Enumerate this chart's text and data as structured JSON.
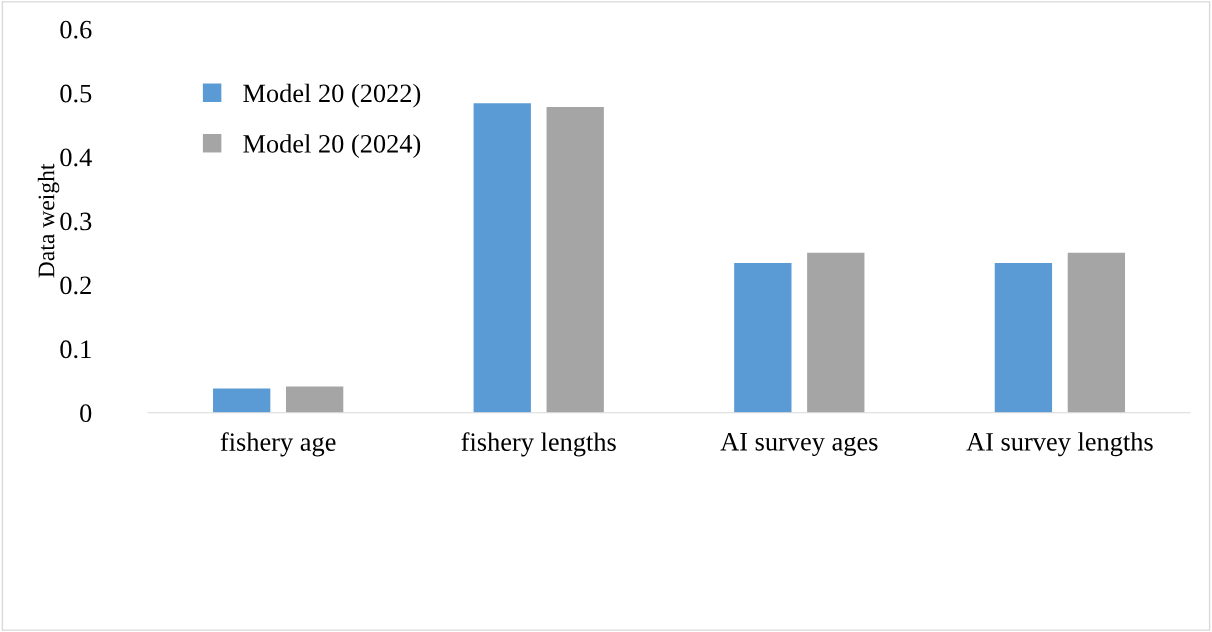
{
  "chart_data": {
    "type": "bar",
    "ylabel": "Data weight",
    "categories": [
      "fishery age",
      "fishery lengths",
      "AI survey ages",
      "AI survey lengths"
    ],
    "series": [
      {
        "name": "Model 20 (2022)",
        "color": "#5b9bd5",
        "values": [
          0.038,
          0.484,
          0.234,
          0.234
        ]
      },
      {
        "name": "Model 20 (2024)",
        "color": "#a5a5a5",
        "values": [
          0.041,
          0.478,
          0.25,
          0.25
        ]
      }
    ],
    "ylim": [
      0,
      0.6
    ],
    "yticks": [
      {
        "value": 0,
        "label": "0"
      },
      0.1,
      0.2,
      0.3,
      0.4,
      0.5,
      0.6
    ],
    "grid": false,
    "legend": "top left"
  }
}
